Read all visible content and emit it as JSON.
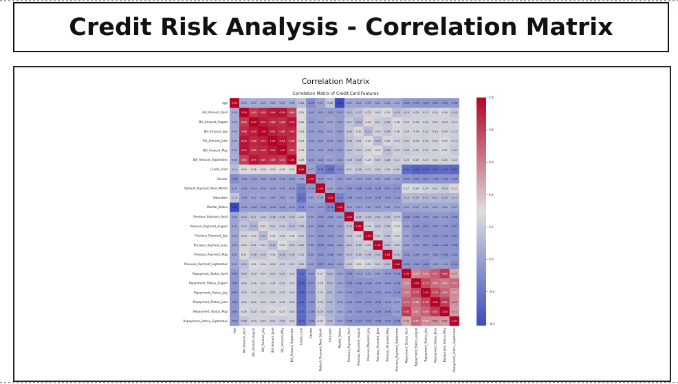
{
  "header": {
    "title": "Credit Risk Analysis - Correlation Matrix"
  },
  "chart_data": {
    "type": "heatmap",
    "title": "Correlation Matrix",
    "subtitle": "Correlation Matrix of Credit Card Features",
    "labels": [
      "Age",
      "Bill_Amount_April",
      "Bill_Amount_August",
      "Bill_Amount_July",
      "Bill_Amount_June",
      "Bill_Amount_May",
      "Bill_Amount_September",
      "Credit_Limit",
      "Gender",
      "Default_Payment_Next_Month",
      "Education",
      "Marital_Status",
      "Previous_Payment_April",
      "Previous_Payment_August",
      "Previous_Payment_July",
      "Previous_Payment_June",
      "Previous_Payment_May",
      "Previous_Payment_September",
      "Repayment_Status_April",
      "Repayment_Status_August",
      "Repayment_Status_July",
      "Repayment_Status_June",
      "Repayment_Status_May",
      "Repayment_Status_September"
    ],
    "matrix": [
      [
        1.0,
        0.05,
        0.05,
        0.05,
        0.05,
        0.05,
        0.06,
        0.14,
        -0.09,
        0.01,
        0.18,
        -0.41,
        0.02,
        0.02,
        0.03,
        0.02,
        0.02,
        0.03,
        -0.05,
        -0.05,
        -0.05,
        -0.05,
        -0.05,
        -0.04
      ],
      [
        0.05,
        1.0,
        0.83,
        0.88,
        0.94,
        0.95,
        0.8,
        0.29,
        -0.02,
        -0.01,
        -0.01,
        -0.02,
        0.12,
        0.17,
        0.23,
        0.25,
        0.31,
        0.15,
        0.19,
        0.23,
        0.22,
        0.24,
        0.26,
        0.18
      ],
      [
        0.05,
        0.83,
        1.0,
        0.93,
        0.88,
        0.86,
        0.95,
        0.28,
        -0.03,
        -0.01,
        0.02,
        -0.02,
        0.17,
        0.1,
        0.32,
        0.21,
        0.18,
        0.28,
        0.23,
        0.24,
        0.24,
        0.24,
        0.23,
        0.23
      ],
      [
        0.05,
        0.88,
        0.93,
        1.0,
        0.92,
        0.88,
        0.89,
        0.28,
        -0.02,
        -0.01,
        0.01,
        -0.02,
        0.18,
        0.32,
        0.12,
        0.23,
        0.19,
        0.26,
        0.24,
        0.24,
        0.22,
        0.23,
        0.24,
        0.23
      ],
      [
        0.05,
        0.94,
        0.88,
        0.92,
        1.0,
        0.94,
        0.86,
        0.29,
        -0.02,
        -0.01,
        0.0,
        -0.02,
        0.16,
        0.21,
        0.3,
        0.13,
        0.26,
        0.23,
        0.21,
        0.24,
        0.22,
        0.24,
        0.27,
        0.21
      ],
      [
        0.05,
        0.95,
        0.86,
        0.88,
        0.94,
        1.0,
        0.83,
        0.3,
        -0.02,
        -0.01,
        -0.01,
        -0.03,
        0.16,
        0.2,
        0.25,
        0.29,
        0.14,
        0.22,
        0.2,
        0.22,
        0.22,
        0.24,
        0.27,
        0.2
      ],
      [
        0.06,
        0.8,
        0.95,
        0.89,
        0.86,
        0.83,
        1.0,
        0.29,
        -0.03,
        -0.02,
        0.02,
        -0.02,
        0.16,
        0.14,
        0.28,
        0.2,
        0.18,
        0.21,
        0.23,
        0.25,
        0.24,
        0.24,
        0.24,
        0.24
      ],
      [
        0.14,
        0.29,
        0.28,
        0.28,
        0.29,
        0.3,
        0.29,
        1.0,
        0.02,
        -0.15,
        -0.22,
        -0.11,
        0.22,
        0.18,
        0.21,
        0.2,
        0.22,
        0.2,
        -0.25,
        -0.3,
        -0.29,
        -0.27,
        -0.25,
        -0.27
      ],
      [
        -0.09,
        -0.02,
        -0.03,
        -0.02,
        -0.02,
        -0.02,
        -0.03,
        0.02,
        1.0,
        -0.04,
        0.01,
        -0.03,
        -0.0,
        -0.01,
        -0.01,
        -0.0,
        -0.0,
        -0.0,
        -0.05,
        -0.07,
        -0.07,
        -0.06,
        -0.06,
        -0.06
      ],
      [
        0.01,
        -0.01,
        -0.01,
        -0.01,
        -0.01,
        -0.01,
        -0.02,
        -0.15,
        -0.04,
        1.0,
        0.03,
        -0.03,
        -0.05,
        -0.06,
        -0.06,
        -0.06,
        -0.05,
        -0.07,
        0.27,
        0.26,
        0.24,
        0.22,
        0.2,
        0.32
      ],
      [
        0.18,
        -0.01,
        0.02,
        0.01,
        0.0,
        -0.01,
        0.02,
        -0.22,
        0.01,
        0.03,
        1.0,
        -0.14,
        -0.04,
        -0.03,
        -0.04,
        -0.04,
        -0.04,
        -0.04,
        0.12,
        0.12,
        0.11,
        0.11,
        0.1,
        0.11
      ],
      [
        -0.41,
        -0.02,
        -0.02,
        -0.02,
        -0.02,
        -0.03,
        -0.02,
        -0.11,
        -0.03,
        -0.03,
        -0.14,
        1.0,
        -0.01,
        -0.01,
        -0.0,
        -0.01,
        -0.0,
        -0.01,
        0.02,
        0.02,
        0.03,
        0.03,
        0.04,
        0.02
      ],
      [
        0.02,
        0.12,
        0.17,
        0.18,
        0.16,
        0.16,
        0.16,
        0.22,
        -0.0,
        -0.05,
        -0.04,
        -0.01,
        1.0,
        0.16,
        0.16,
        0.15,
        0.15,
        0.19,
        -0.06,
        -0.06,
        -0.04,
        -0.03,
        -0.03,
        -0.06
      ],
      [
        0.02,
        0.17,
        0.1,
        0.32,
        0.21,
        0.2,
        0.14,
        0.18,
        -0.01,
        -0.06,
        -0.03,
        -0.01,
        0.16,
        1.0,
        0.24,
        0.18,
        0.18,
        0.29,
        -0.01,
        -0.06,
        -0.07,
        -0.05,
        -0.05,
        -0.07
      ],
      [
        0.03,
        0.23,
        0.32,
        0.12,
        0.3,
        0.25,
        0.28,
        0.21,
        -0.01,
        -0.06,
        -0.04,
        -0.0,
        0.16,
        0.24,
        1.0,
        0.22,
        0.16,
        0.25,
        0.01,
        -0.06,
        -0.06,
        -0.07,
        -0.06,
        -0.07
      ],
      [
        0.02,
        0.25,
        0.21,
        0.23,
        0.13,
        0.29,
        0.2,
        0.2,
        -0.0,
        -0.06,
        -0.04,
        -0.01,
        0.15,
        0.18,
        0.22,
        1.0,
        0.15,
        0.2,
        -0.0,
        -0.03,
        -0.05,
        -0.06,
        -0.06,
        -0.06
      ],
      [
        0.02,
        0.31,
        0.18,
        0.19,
        0.26,
        0.14,
        0.18,
        0.22,
        -0.0,
        -0.05,
        -0.04,
        -0.0,
        0.15,
        0.18,
        0.16,
        0.15,
        1.0,
        0.15,
        -0.04,
        -0.04,
        -0.04,
        -0.03,
        -0.06,
        -0.05
      ],
      [
        0.03,
        0.15,
        0.28,
        0.26,
        0.23,
        0.22,
        0.21,
        0.2,
        -0.0,
        -0.07,
        -0.04,
        -0.01,
        0.19,
        0.29,
        0.25,
        0.2,
        0.15,
        1.0,
        -0.06,
        -0.06,
        -0.08,
        -0.01,
        -0.01,
        -0.08
      ],
      [
        -0.05,
        0.19,
        0.23,
        0.24,
        0.21,
        0.2,
        0.23,
        -0.25,
        -0.05,
        0.27,
        0.12,
        0.02,
        -0.06,
        -0.01,
        0.01,
        -0.0,
        -0.04,
        -0.06,
        1.0,
        0.58,
        0.63,
        0.71,
        0.83,
        0.47
      ],
      [
        -0.05,
        0.23,
        0.24,
        0.24,
        0.24,
        0.22,
        0.25,
        -0.3,
        -0.07,
        0.26,
        0.12,
        0.02,
        -0.06,
        -0.06,
        -0.06,
        -0.03,
        -0.04,
        -0.06,
        0.58,
        1.0,
        0.77,
        0.66,
        0.62,
        0.67
      ],
      [
        -0.05,
        0.22,
        0.24,
        0.22,
        0.22,
        0.22,
        0.24,
        -0.29,
        -0.07,
        0.24,
        0.11,
        0.03,
        -0.04,
        -0.07,
        -0.06,
        -0.05,
        -0.04,
        -0.08,
        0.63,
        0.77,
        1.0,
        0.78,
        0.69,
        0.56
      ],
      [
        -0.05,
        0.24,
        0.24,
        0.23,
        0.24,
        0.24,
        0.24,
        -0.27,
        -0.06,
        0.22,
        0.11,
        0.03,
        -0.03,
        -0.05,
        -0.07,
        -0.06,
        -0.03,
        -0.01,
        0.71,
        0.66,
        0.78,
        1.0,
        0.82,
        0.54
      ],
      [
        -0.05,
        0.26,
        0.23,
        0.24,
        0.27,
        0.27,
        0.24,
        -0.25,
        -0.06,
        0.2,
        0.1,
        0.04,
        -0.03,
        -0.05,
        -0.06,
        -0.06,
        -0.06,
        -0.01,
        0.83,
        0.62,
        0.69,
        0.82,
        1.0,
        0.51
      ],
      [
        -0.04,
        0.18,
        0.23,
        0.23,
        0.21,
        0.2,
        0.24,
        -0.27,
        -0.06,
        0.32,
        0.11,
        0.02,
        -0.06,
        -0.07,
        -0.07,
        -0.06,
        -0.05,
        -0.08,
        0.47,
        0.67,
        0.56,
        0.54,
        0.51,
        1.0
      ]
    ],
    "colorbar_ticks": [
      1.0,
      0.8,
      0.6,
      0.4,
      0.2,
      0.0,
      -0.2,
      -0.4
    ],
    "colorbar_tick_labels": [
      "1.0",
      "0.8",
      "0.6",
      "0.4",
      "0.2",
      "0.0",
      "-0.2",
      "-0.4"
    ],
    "value_range": [
      -0.41,
      1.0
    ],
    "colormap": "coolwarm",
    "colors": {
      "low": "#3b4cc0",
      "mid": "#dddddd",
      "high": "#b40426"
    },
    "legend_placement": "right"
  }
}
